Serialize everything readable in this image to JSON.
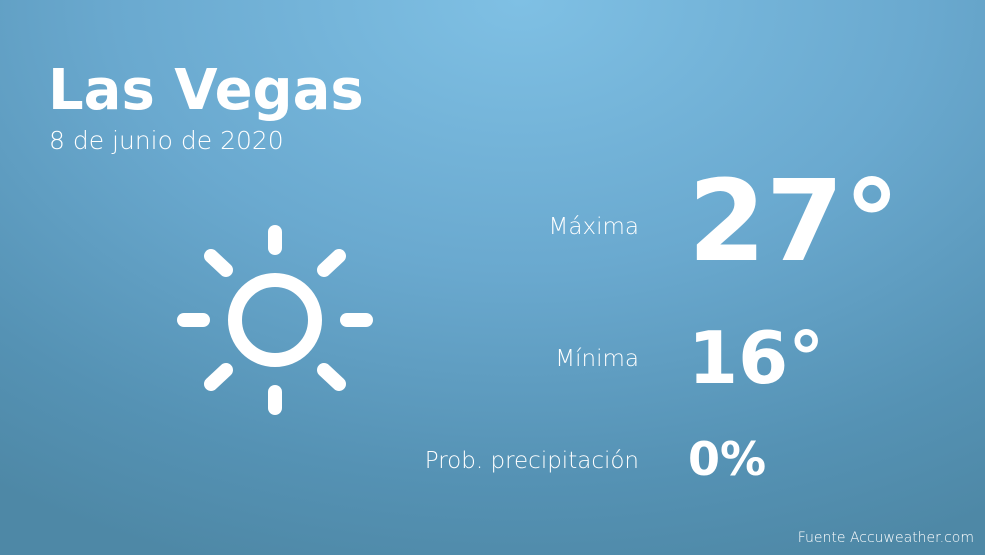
{
  "city": "Las Vegas",
  "date": "8 de junio de 2020",
  "icon": "sun-icon",
  "max": {
    "label": "Máxima",
    "value": "27°"
  },
  "min": {
    "label": "Mínima",
    "value": "16°"
  },
  "precip": {
    "label": "Prob. precipitación",
    "value": "0%"
  },
  "source": "Fuente Accuweather.com",
  "colors": {
    "background_top": "#7fc0e4",
    "background_bottom": "#4e88a6",
    "text": "#ffffff"
  }
}
